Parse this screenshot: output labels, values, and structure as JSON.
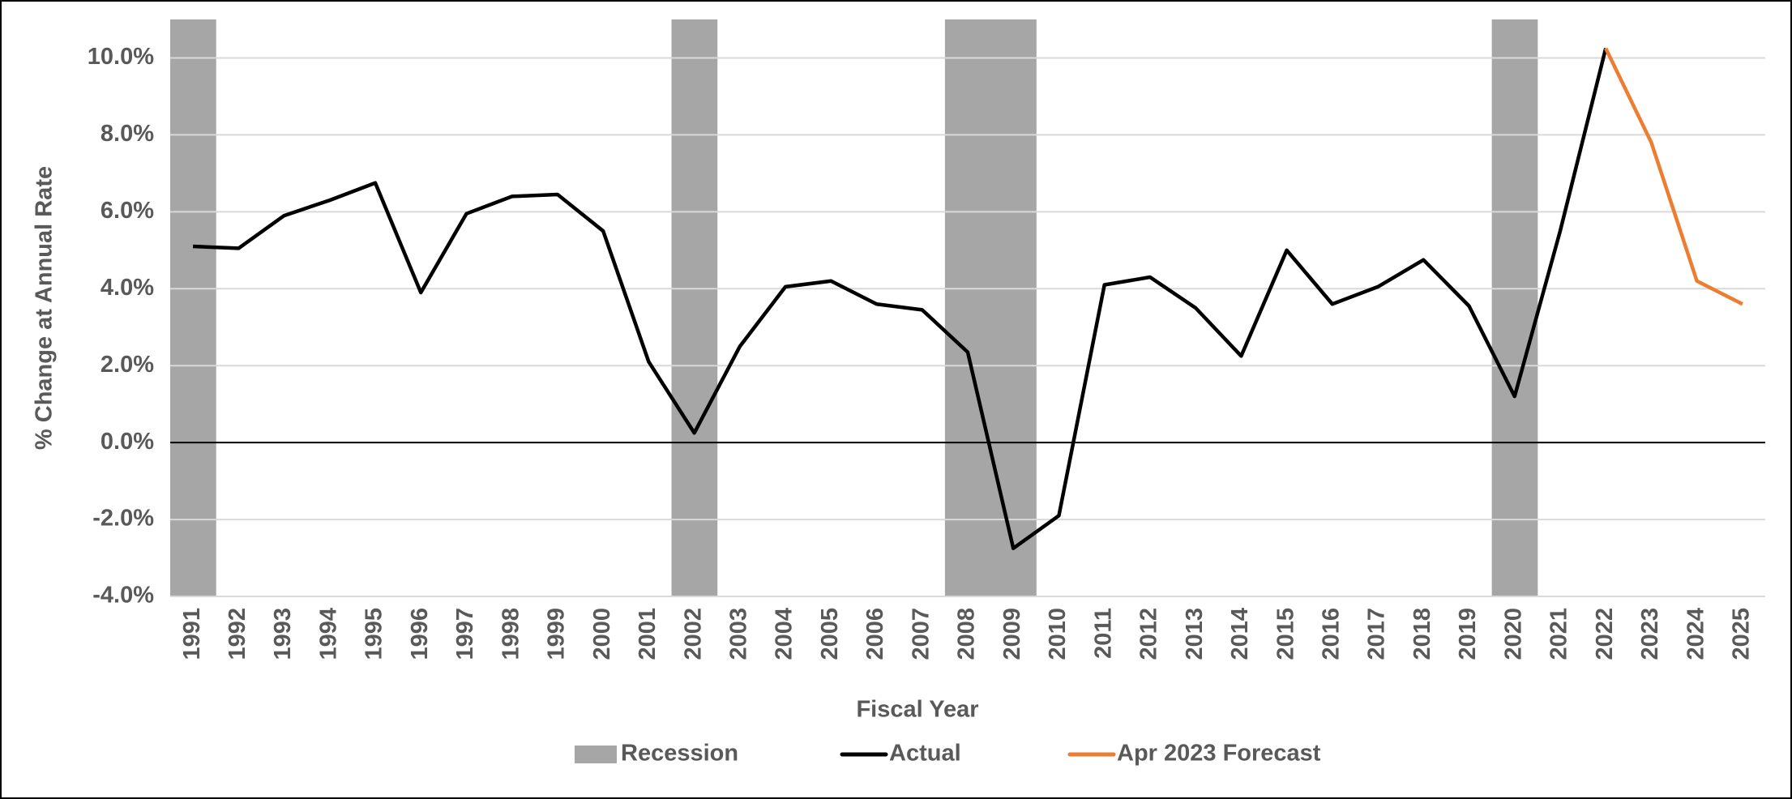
{
  "chart_data": {
    "type": "line",
    "x_label": "Fiscal Year",
    "y_label": "% Change at Annual Rate",
    "categories": [
      "1991",
      "1992",
      "1993",
      "1994",
      "1995",
      "1996",
      "1997",
      "1998",
      "1999",
      "2000",
      "2001",
      "2002",
      "2003",
      "2004",
      "2005",
      "2006",
      "2007",
      "2008",
      "2009",
      "2010",
      "2011",
      "2012",
      "2013",
      "2014",
      "2015",
      "2016",
      "2017",
      "2018",
      "2019",
      "2020",
      "2021",
      "2022",
      "2023",
      "2024",
      "2025"
    ],
    "recession": {
      "name": "Recession",
      "color": "#a6a6a6",
      "categories": [
        "1991",
        "2002",
        "2008",
        "2009",
        "2020"
      ]
    },
    "series": [
      {
        "name": "Actual",
        "color": "#000000",
        "values": [
          5.1,
          5.05,
          5.9,
          6.3,
          6.75,
          3.9,
          5.95,
          6.4,
          6.45,
          5.5,
          2.1,
          0.25,
          2.5,
          4.05,
          4.2,
          3.6,
          3.45,
          2.35,
          -2.75,
          -1.9,
          4.1,
          4.3,
          3.5,
          2.25,
          5.0,
          3.6,
          4.05,
          4.75,
          3.55,
          1.2,
          5.5,
          10.25,
          null,
          null,
          null
        ]
      },
      {
        "name": "Apr 2023 Forecast",
        "color": "#ed7d31",
        "values": [
          null,
          null,
          null,
          null,
          null,
          null,
          null,
          null,
          null,
          null,
          null,
          null,
          null,
          null,
          null,
          null,
          null,
          null,
          null,
          null,
          null,
          null,
          null,
          null,
          null,
          null,
          null,
          null,
          null,
          null,
          null,
          10.25,
          7.8,
          4.2,
          3.6
        ]
      }
    ],
    "ylim": [
      -4,
      11
    ],
    "yticks": [
      {
        "value": -4,
        "label": "-4.0%"
      },
      {
        "value": -2,
        "label": "-2.0%"
      },
      {
        "value": 0,
        "label": "0.0%"
      },
      {
        "value": 2,
        "label": "2.0%"
      },
      {
        "value": 4,
        "label": "4.0%"
      },
      {
        "value": 6,
        "label": "6.0%"
      },
      {
        "value": 8,
        "label": "8.0%"
      },
      {
        "value": 10,
        "label": "10.0%"
      }
    ],
    "grid": true,
    "legend": "bottom"
  }
}
